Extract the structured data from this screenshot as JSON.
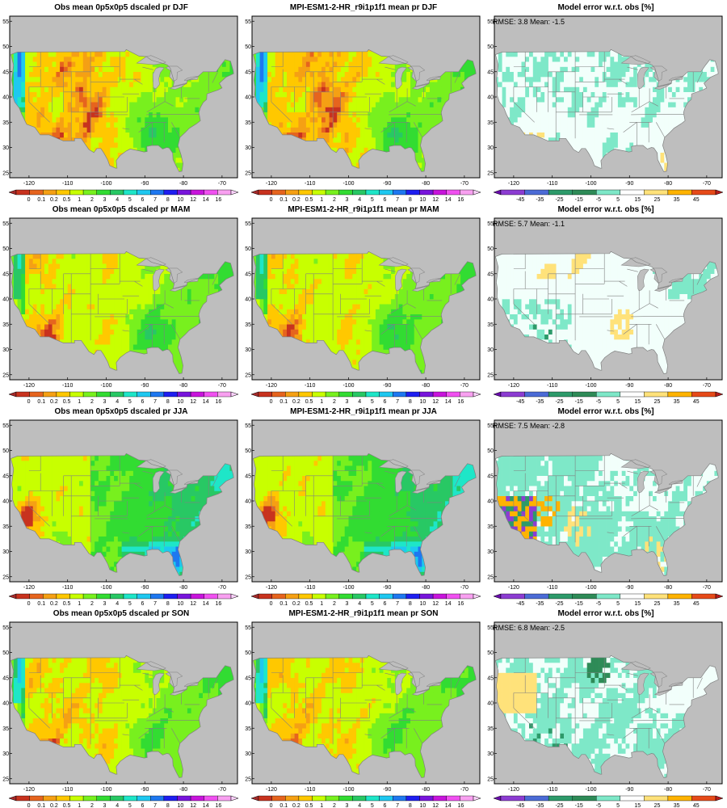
{
  "figure": {
    "lon_ticks": [
      "-120",
      "-110",
      "-100",
      "-90",
      "-80",
      "-70"
    ],
    "lat_ticks": [
      "25",
      "30",
      "35",
      "40",
      "45",
      "50",
      "55"
    ],
    "colorbars": {
      "precip": {
        "labels": [
          "0",
          "0.1",
          "0.2",
          "0.5",
          "1",
          "2",
          "3",
          "4",
          "5",
          "6",
          "7",
          "8",
          "10",
          "12",
          "14",
          "16"
        ],
        "colors": [
          "#a52a2a",
          "#c8321e",
          "#e6641e",
          "#f5a014",
          "#ffc800",
          "#c8ff00",
          "#78f01e",
          "#32dc32",
          "#28c864",
          "#1ee6c8",
          "#1ec8f0",
          "#1e78f0",
          "#1e1ef0",
          "#7814dc",
          "#c814dc",
          "#f050f0",
          "#f8a0f0",
          "#fad2fa"
        ]
      },
      "error": {
        "labels": [
          "-45",
          "-35",
          "-25",
          "-15",
          "-5",
          "5",
          "15",
          "25",
          "35",
          "45"
        ],
        "colors": [
          "#6a0dad",
          "#8c3cd2",
          "#4b6bd6",
          "#2d9a6a",
          "#2e8b57",
          "#7ee8c8",
          "#ffffff",
          "#ffe27a",
          "#ffb300",
          "#e64a19",
          "#b71c1c"
        ]
      }
    },
    "rows": [
      {
        "season": "DJF",
        "obs_title": "Obs mean 0p5x0p5 dscaled pr DJF",
        "model_title": "MPI-ESM1-2-HR_r9i1p1f1 mean pr DJF",
        "err_title": "Model error w.r.t. obs [%]",
        "rmse_label": "RMSE: 3.8  Mean: -1.5",
        "rmse": 3.8,
        "mean": -1.5
      },
      {
        "season": "MAM",
        "obs_title": "Obs mean 0p5x0p5 dscaled pr MAM",
        "model_title": "MPI-ESM1-2-HR_r9i1p1f1 mean pr MAM",
        "err_title": "Model error w.r.t. obs [%]",
        "rmse_label": "RMSE: 5.7  Mean: -1.1",
        "rmse": 5.7,
        "mean": -1.1
      },
      {
        "season": "JJA",
        "obs_title": "Obs mean 0p5x0p5 dscaled pr JJA",
        "model_title": "MPI-ESM1-2-HR_r9i1p1f1 mean pr JJA",
        "err_title": "Model error w.r.t. obs [%]",
        "rmse_label": "RMSE: 7.5  Mean: -2.8",
        "rmse": 7.5,
        "mean": -2.8
      },
      {
        "season": "SON",
        "obs_title": "Obs mean 0p5x0p5 dscaled pr SON",
        "model_title": "MPI-ESM1-2-HR_r9i1p1f1 mean pr SON",
        "err_title": "Model error w.r.t. obs [%]",
        "rmse_label": "RMSE: 6.8  Mean: -2.5",
        "rmse": 6.8,
        "mean": -2.5
      }
    ]
  }
}
